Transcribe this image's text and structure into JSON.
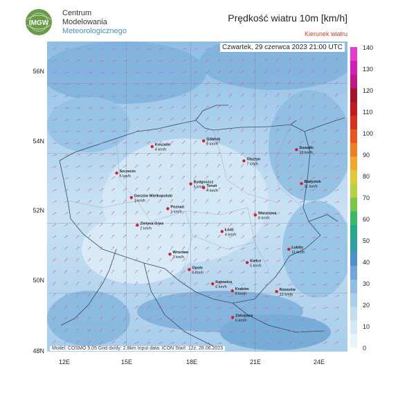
{
  "header": {
    "org_lines": [
      "Centrum",
      "Modelowania",
      "Meteorologicznego"
    ],
    "logo_text": "IMGW",
    "title": "Prędkość wiatru 10m [km/h]",
    "subtitle": "Kierunek wiatru",
    "timestamp": "Czwartek, 29 czerwca 2023 21:00 UTC"
  },
  "footer": "Model: COSMO 5.05  Grid dx/dy: 2.8km  Input data: ICON  Start: 12z, 28.06.2023",
  "axes": {
    "lat_labels": [
      "56N",
      "54N",
      "52N",
      "50N",
      "48N"
    ],
    "lon_labels": [
      "12E",
      "15E",
      "18E",
      "21E",
      "24E"
    ]
  },
  "colorbar": {
    "labels": [
      "140",
      "130",
      "120",
      "110",
      "100",
      "90",
      "80",
      "70",
      "60",
      "50",
      "40",
      "30",
      "20",
      "10",
      "0"
    ],
    "colors": [
      "#e8f3fb",
      "#d4e8f6",
      "#c2ddf1",
      "#a9cfea",
      "#8dbde2",
      "#6fa7d6",
      "#4e90c9",
      "#2f9fa6",
      "#26a88a",
      "#3bb86a",
      "#7ac64a",
      "#b5d33f",
      "#e0c936",
      "#f2a92b",
      "#f07e24",
      "#e8551f",
      "#d9301d",
      "#c21b1e",
      "#a3152a",
      "#c21787",
      "#d31fb4",
      "#e43ccc"
    ]
  },
  "cities": [
    {
      "name": "Gdańsk",
      "value": "8 km/h",
      "lon": 18.6,
      "lat": 54.35
    },
    {
      "name": "Koszalin",
      "value": "4 km/h",
      "lon": 16.2,
      "lat": 54.19
    },
    {
      "name": "Szczecin",
      "value": "5 km/h",
      "lon": 14.55,
      "lat": 53.43
    },
    {
      "name": "Olsztyn",
      "value": "7 km/h",
      "lon": 20.48,
      "lat": 53.78
    },
    {
      "name": "Suwałki",
      "value": "16 km/h",
      "lon": 22.93,
      "lat": 54.1
    },
    {
      "name": "Białystok",
      "value": "11 km/h",
      "lon": 23.16,
      "lat": 53.13
    },
    {
      "name": "Bydgoszcz",
      "value": "5 km/h",
      "lon": 18.0,
      "lat": 53.12
    },
    {
      "name": "Toruń",
      "value": "4 km/h",
      "lon": 18.6,
      "lat": 53.01
    },
    {
      "name": "Gorzów Wielkopolski",
      "value": "1 km/h",
      "lon": 15.23,
      "lat": 52.73
    },
    {
      "name": "Poznań",
      "value": "1 km/h",
      "lon": 16.93,
      "lat": 52.41
    },
    {
      "name": "Warszawa",
      "value": "8 km/h",
      "lon": 21.01,
      "lat": 52.23
    },
    {
      "name": "Zielona Góra",
      "value": "2 km/h",
      "lon": 15.51,
      "lat": 51.94
    },
    {
      "name": "Łódź",
      "value": "4 km/h",
      "lon": 19.46,
      "lat": 51.76
    },
    {
      "name": "Lublin",
      "value": "11 km/h",
      "lon": 22.57,
      "lat": 51.25
    },
    {
      "name": "Wrocław",
      "value": "3 km/h",
      "lon": 17.03,
      "lat": 51.11
    },
    {
      "name": "Kielce",
      "value": "5 km/h",
      "lon": 20.63,
      "lat": 50.87
    },
    {
      "name": "Opole",
      "value": "6 km/h",
      "lon": 17.93,
      "lat": 50.67
    },
    {
      "name": "Katowice",
      "value": "6 km/h",
      "lon": 19.02,
      "lat": 50.26
    },
    {
      "name": "Kraków",
      "value": "8 km/h",
      "lon": 19.94,
      "lat": 50.06
    },
    {
      "name": "Rzeszów",
      "value": "12 km/h",
      "lon": 22.0,
      "lat": 50.04
    },
    {
      "name": "Zakopane",
      "value": "6 km/h",
      "lon": 19.95,
      "lat": 49.3
    }
  ]
}
